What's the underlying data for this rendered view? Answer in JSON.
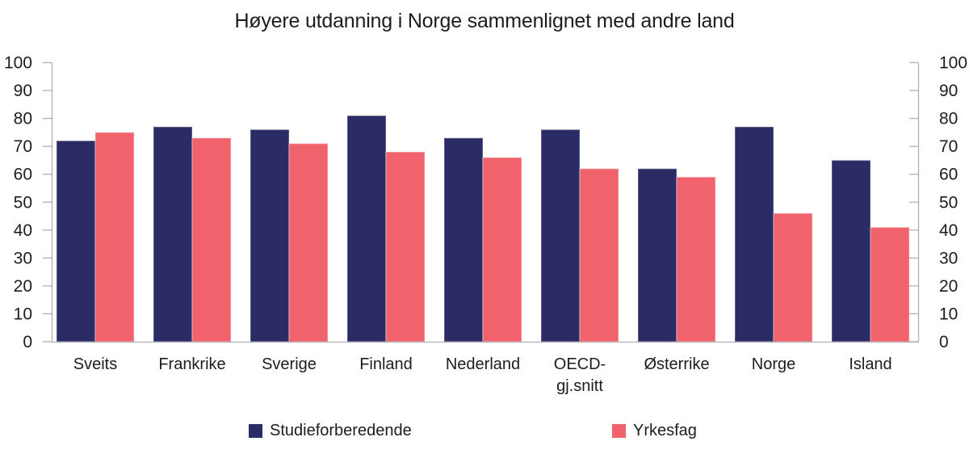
{
  "chart_data": {
    "type": "bar",
    "title": "Høyere utdanning i Norge sammenlignet med andre land",
    "categories": [
      "Sveits",
      "Frankrike",
      "Sverige",
      "Finland",
      "Nederland",
      "OECD-\ngj.snitt",
      "Østerrike",
      "Norge",
      "Island"
    ],
    "series": [
      {
        "name": "Studieforberedende",
        "color": "#2B2B65",
        "values": [
          72,
          77,
          76,
          81,
          73,
          76,
          62,
          77,
          65
        ]
      },
      {
        "name": "Yrkesfag",
        "color": "#F1636C",
        "values": [
          75,
          73,
          71,
          68,
          66,
          62,
          59,
          46,
          41
        ]
      }
    ],
    "ylim": [
      0,
      100
    ],
    "ytick_step": 10,
    "yticks": [
      0,
      10,
      20,
      30,
      40,
      50,
      60,
      70,
      80,
      90,
      100
    ],
    "axes": {
      "left_axis": true,
      "right_axis": true,
      "grid": false
    },
    "axis_color": "#B0B0B3",
    "text_color": "#1D1D1B",
    "legend_position": "bottom"
  }
}
